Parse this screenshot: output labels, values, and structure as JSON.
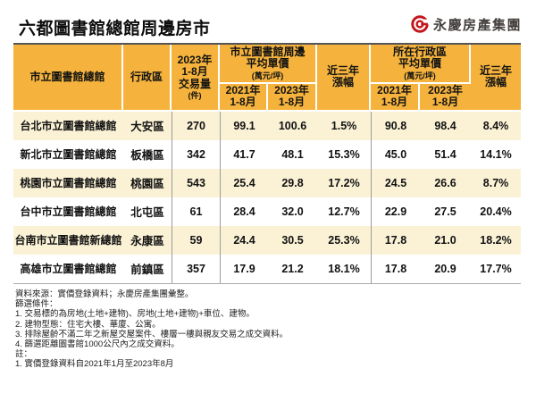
{
  "page": {
    "title": "六都圖書館總館周邊房市",
    "brand": {
      "name": "永慶房產集團",
      "icon": "yungching-g-ring-icon",
      "color": "#C3161C",
      "text_color": "#45403E"
    }
  },
  "table": {
    "header": {
      "library": "市立圖書館總館",
      "district": "行政區",
      "volume": "2023年\n1-8月\n交易量",
      "volume_unit": "(件)",
      "group_nearby": "市立圖書館周邊\n平均單價",
      "group_district": "所在行政區\n平均單價",
      "price_unit": "(萬元/坪)",
      "sub_2021": "2021年\n1-8月",
      "sub_2023": "2023年\n1-8月",
      "growth": "近三年\n漲幅"
    }
  },
  "chart_data": {
    "type": "table",
    "title": "六都圖書館總館周邊房市",
    "columns": [
      "市立圖書館總館",
      "行政區",
      "2023年1-8月交易量(件)",
      "市立圖書館周邊平均單價(萬元/坪) 2021年1-8月",
      "市立圖書館周邊平均單價(萬元/坪) 2023年1-8月",
      "市立圖書館周邊近三年漲幅",
      "所在行政區平均單價(萬元/坪) 2021年1-8月",
      "所在行政區平均單價(萬元/坪) 2023年1-8月",
      "所在行政區近三年漲幅"
    ],
    "rows": [
      [
        "台北市立圖書館總館",
        "大安區",
        "270",
        "99.1",
        "100.6",
        "1.5%",
        "90.8",
        "98.4",
        "8.4%"
      ],
      [
        "新北市立圖書館總館",
        "板橋區",
        "342",
        "41.7",
        "48.1",
        "15.3%",
        "45.0",
        "51.4",
        "14.1%"
      ],
      [
        "桃園市立圖書館總館",
        "桃園區",
        "543",
        "25.4",
        "29.8",
        "17.2%",
        "24.5",
        "26.6",
        "8.7%"
      ],
      [
        "台中市立圖書館總館",
        "北屯區",
        "61",
        "28.4",
        "32.0",
        "12.7%",
        "22.9",
        "27.5",
        "20.4%"
      ],
      [
        "台南市立圖書館新總館",
        "永康區",
        "59",
        "24.4",
        "30.5",
        "25.3%",
        "17.8",
        "21.0",
        "18.2%"
      ],
      [
        "高雄市立圖書館總館",
        "前鎮區",
        "357",
        "17.9",
        "21.2",
        "18.1%",
        "17.8",
        "20.9",
        "17.7%"
      ]
    ]
  },
  "notes": {
    "source": "資料來源：實價登錄資料；永慶房產集團彙整。",
    "filter_title": "篩選條件：",
    "filters": [
      "1. 交易標的為房地(土地+建物)、房地(土地+建物)+車位、建物。",
      "2. 建物型態：住宅大樓、華廈、公寓。",
      "3. 排除屋齡不滿二年之新屋交屋案件、樓層一樓與親友交易之成交資料。",
      "4. 篩選距離圖書館1000公尺內之成交資料。"
    ],
    "note_title": "註：",
    "items": [
      "1. 實價登錄資料自2021年1月至2023年8月"
    ]
  },
  "colors": {
    "header_bg": "#F5B33D",
    "row_alt_bg": "#FBF2D6",
    "brand_red": "#C3161C",
    "border_gray": "#9B9B9B"
  }
}
